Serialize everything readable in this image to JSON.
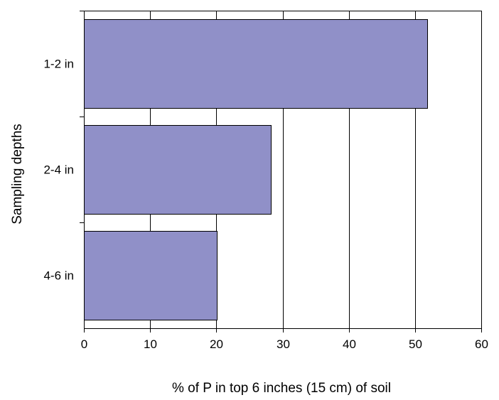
{
  "chart_data": {
    "type": "bar",
    "orientation": "horizontal",
    "categories": [
      "1-2 in",
      "2-4 in",
      "4-6 in"
    ],
    "values": [
      51.8,
      28.2,
      20.1
    ],
    "xlabel": "% of P in top 6 inches (15 cm) of soil",
    "ylabel": "Sampling depths",
    "xlim": [
      0,
      60
    ],
    "xticks": [
      "0",
      "10",
      "20",
      "30",
      "40",
      "50",
      "60"
    ],
    "grid": "vertical",
    "legend": "none"
  },
  "colors": {
    "bar_fill": "#9090c8",
    "bar_stroke": "#000000",
    "grid": "#000000",
    "axis": "#000000"
  }
}
